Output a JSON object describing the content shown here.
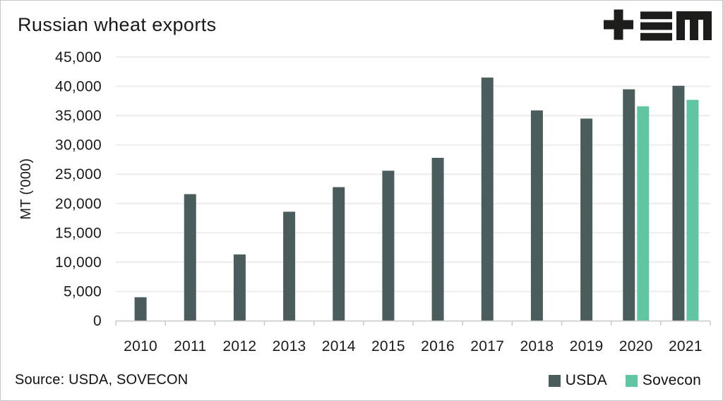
{
  "header": {
    "title": "Russian wheat exports",
    "logo": "plus-three-bars-m-logo",
    "logo_color": "#1d1d1b"
  },
  "footer": {
    "source": "Source: USDA, SOVECON"
  },
  "legend": {
    "items": [
      {
        "label": "USDA",
        "color": "#4b5c5d"
      },
      {
        "label": "Sovecon",
        "color": "#5fc5a2"
      }
    ]
  },
  "chart_data": {
    "type": "bar",
    "title": "Russian wheat exports",
    "categories": [
      "2010",
      "2011",
      "2012",
      "2013",
      "2014",
      "2015",
      "2016",
      "2017",
      "2018",
      "2019",
      "2020",
      "2021"
    ],
    "series": [
      {
        "name": "USDA",
        "color": "#4b5c5d",
        "values": [
          4000,
          21600,
          11300,
          18600,
          22800,
          25600,
          27800,
          41500,
          35900,
          34500,
          39500,
          40100
        ]
      },
      {
        "name": "Sovecon",
        "color": "#5fc5a2",
        "values": [
          null,
          null,
          null,
          null,
          null,
          null,
          null,
          null,
          null,
          null,
          36600,
          37700
        ]
      }
    ],
    "xlabel": "",
    "ylabel": "MT ('000)",
    "ylim": [
      0,
      45000
    ],
    "ytick_step": 5000,
    "ytick_labels": [
      "0",
      "5,000",
      "10,000",
      "15,000",
      "20,000",
      "25,000",
      "30,000",
      "35,000",
      "40,000",
      "45,000"
    ],
    "grid": true,
    "legend_position": "bottom-right",
    "source": "Source: USDA, SOVECON",
    "colors": {
      "gridline": "#ececec",
      "axis_line": "#c9c9c9",
      "tick_text": "#1a1a1a"
    }
  }
}
